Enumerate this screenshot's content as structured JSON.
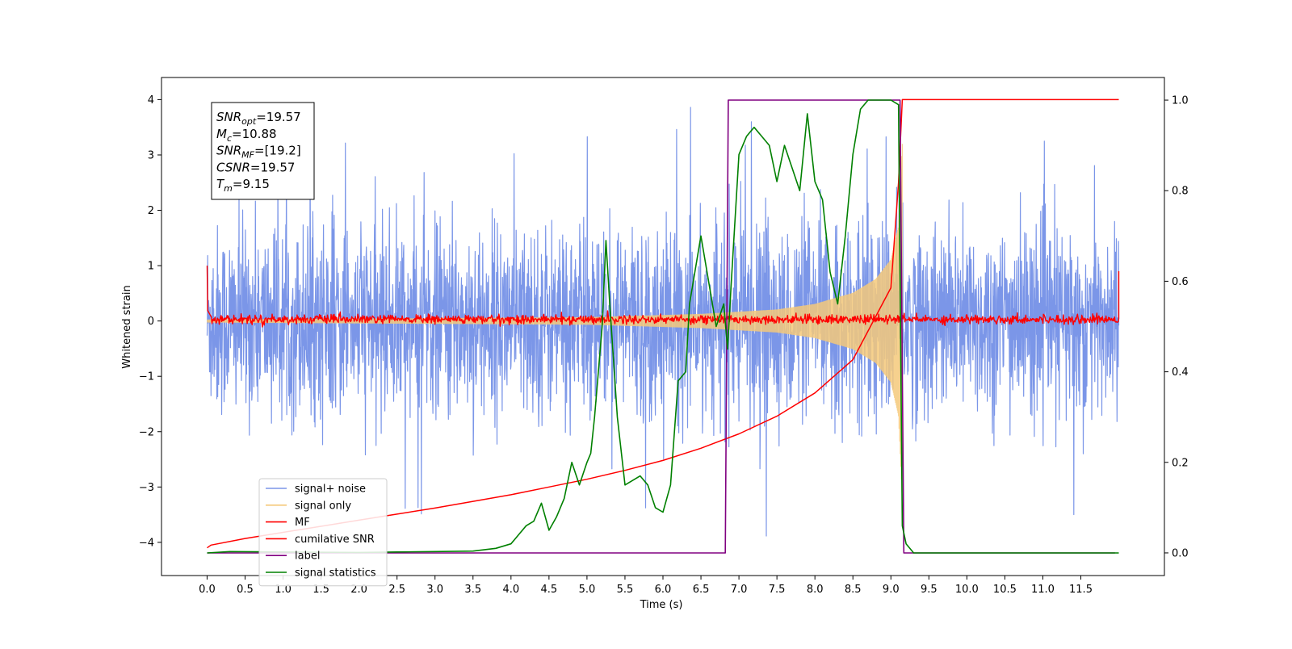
{
  "chart_data": {
    "type": "line",
    "xlabel": "Time (s)",
    "ylabel": "Whitened strain",
    "xlim": [
      -0.6,
      12.6
    ],
    "ylim": [
      -4.6,
      4.4
    ],
    "y2lim": [
      -0.05,
      1.05
    ],
    "grid": false,
    "x_ticks": [
      "0.0",
      "0.5",
      "1.0",
      "1.5",
      "2.0",
      "2.5",
      "3.0",
      "3.5",
      "4.0",
      "4.5",
      "5.0",
      "5.5",
      "6.0",
      "6.5",
      "7.0",
      "7.5",
      "8.0",
      "8.5",
      "9.0",
      "9.5",
      "10.0",
      "10.5",
      "11.0",
      "11.5"
    ],
    "x_tick_values": [
      0,
      0.5,
      1,
      1.5,
      2,
      2.5,
      3,
      3.5,
      4,
      4.5,
      5,
      5.5,
      6,
      6.5,
      7,
      7.5,
      8,
      8.5,
      9,
      9.5,
      10,
      10.5,
      11,
      11.5
    ],
    "y_ticks": [
      "−4",
      "−3",
      "−2",
      "−1",
      "0",
      "1",
      "2",
      "3",
      "4"
    ],
    "y_tick_values": [
      -4,
      -3,
      -2,
      -1,
      0,
      1,
      2,
      3,
      4
    ],
    "y2_ticks": [
      "0.0",
      "0.2",
      "0.4",
      "0.6",
      "0.8",
      "1.0"
    ],
    "y2_tick_values": [
      0,
      0.2,
      0.4,
      0.6,
      0.8,
      1.0
    ],
    "annotation": {
      "lines": [
        {
          "sym": "SNR",
          "sub": "opt",
          "value": "=19.57"
        },
        {
          "sym": "M",
          "sub": "c",
          "value": "=10.88"
        },
        {
          "sym": "SNR",
          "sub": "MF",
          "value": "=[19.2]"
        },
        {
          "sym": "CSNR",
          "sub": "",
          "value": "=19.57"
        },
        {
          "sym": "T",
          "sub": "m",
          "value": "=9.15"
        }
      ]
    },
    "legend_position": "lower left",
    "series": [
      {
        "name": "signal+ noise",
        "color": "#7b96e8",
        "kind": "noise",
        "axis": "left",
        "x_range": [
          0,
          12
        ],
        "typical_range": [
          -2.3,
          2.4
        ],
        "extremes": [
          -4.2,
          3.9
        ]
      },
      {
        "name": "signal only",
        "color": "#f5c97a",
        "kind": "chirp",
        "axis": "left",
        "x_range": [
          0,
          9.15
        ],
        "envelope": [
          [
            0,
            0.02
          ],
          [
            5.0,
            0.06
          ],
          [
            6.5,
            0.12
          ],
          [
            7.5,
            0.2
          ],
          [
            8.0,
            0.3
          ],
          [
            8.5,
            0.5
          ],
          [
            8.8,
            0.75
          ],
          [
            9.0,
            1.1
          ],
          [
            9.1,
            1.7
          ],
          [
            9.15,
            3.2
          ]
        ]
      },
      {
        "name": "MF",
        "color": "#ff0000",
        "kind": "mf",
        "axis": "left",
        "x_range": [
          0,
          12
        ],
        "start_value": 1.0,
        "end_value": 0.9,
        "noise_amplitude": 0.09
      },
      {
        "name": "cumilative SNR",
        "color": "#ff0000",
        "axis": "left",
        "x": [
          0,
          0.05,
          0.5,
          1,
          1.5,
          2,
          2.5,
          3,
          3.5,
          4,
          4.5,
          5,
          5.5,
          6,
          6.5,
          7,
          7.5,
          8,
          8.5,
          9,
          9.1,
          9.15,
          12
        ],
        "y": [
          -4.1,
          -4.05,
          -3.93,
          -3.82,
          -3.71,
          -3.6,
          -3.49,
          -3.38,
          -3.26,
          -3.14,
          -3.0,
          -2.86,
          -2.7,
          -2.52,
          -2.3,
          -2.04,
          -1.72,
          -1.3,
          -0.7,
          0.6,
          2.5,
          4.0,
          4.0
        ]
      },
      {
        "name": "label",
        "color": "#800080",
        "axis": "right",
        "x": [
          0,
          6.82,
          6.86,
          9.12,
          9.17,
          11.95
        ],
        "y": [
          0,
          0,
          1,
          1,
          0,
          0
        ]
      },
      {
        "name": "signal statistics",
        "color": "#008000",
        "axis": "right",
        "x": [
          0,
          0.3,
          1,
          2,
          2.5,
          3,
          3.5,
          3.8,
          4.0,
          4.1,
          4.2,
          4.3,
          4.4,
          4.5,
          4.6,
          4.7,
          4.8,
          4.9,
          5.0,
          5.05,
          5.1,
          5.2,
          5.25,
          5.3,
          5.4,
          5.5,
          5.6,
          5.7,
          5.8,
          5.9,
          6.0,
          6.1,
          6.2,
          6.3,
          6.35,
          6.45,
          6.5,
          6.6,
          6.7,
          6.8,
          6.85,
          6.9,
          7.0,
          7.1,
          7.2,
          7.3,
          7.4,
          7.5,
          7.6,
          7.7,
          7.8,
          7.9,
          8.0,
          8.1,
          8.2,
          8.3,
          8.4,
          8.5,
          8.6,
          8.7,
          8.8,
          8.9,
          9.0,
          9.1,
          9.15,
          9.2,
          9.3,
          12
        ],
        "y": [
          0,
          0.003,
          0.002,
          0.001,
          0.002,
          0.003,
          0.004,
          0.01,
          0.02,
          0.04,
          0.06,
          0.07,
          0.11,
          0.05,
          0.08,
          0.12,
          0.2,
          0.15,
          0.2,
          0.22,
          0.3,
          0.5,
          0.69,
          0.55,
          0.3,
          0.15,
          0.16,
          0.17,
          0.15,
          0.1,
          0.09,
          0.15,
          0.38,
          0.4,
          0.55,
          0.65,
          0.7,
          0.6,
          0.5,
          0.55,
          0.45,
          0.6,
          0.88,
          0.92,
          0.94,
          0.92,
          0.9,
          0.82,
          0.9,
          0.85,
          0.8,
          0.97,
          0.82,
          0.78,
          0.62,
          0.55,
          0.7,
          0.88,
          0.98,
          1.0,
          1.0,
          1.0,
          1.0,
          0.99,
          0.06,
          0.02,
          0.0,
          0.0
        ]
      }
    ]
  }
}
